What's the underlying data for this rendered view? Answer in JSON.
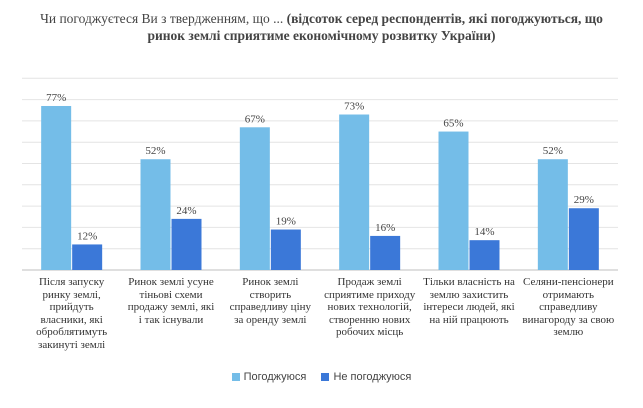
{
  "title": {
    "prefix": "Чи погоджуєтеся Ви з твердженням, що ...",
    "main": "(відсоток серед респондентів, які погоджуються, що ринок землі сприятиме економічному розвитку України)"
  },
  "colors": {
    "agree": "#74bde8",
    "disagree": "#3b78d8"
  },
  "chart_data": {
    "type": "bar",
    "title": "Чи погоджуєтеся Ви з твердженням, що ... (відсоток серед респондентів, які погоджуються, що ринок землі сприятиме економічному розвитку України)",
    "categories": [
      "Після запуску ринку землі, прийдуть власники, які оброблятимуть закинуті землі",
      "Ринок землі усуне тіньові схеми продажу землі, які і так існували",
      "Ринок землі створить справедливу ціну за оренду землі",
      "Продаж землі сприятиме приходу нових технологій, створенню нових робочих місць",
      "Тільки власність на землю захистить інтереси людей, які на ній працюють",
      "Селяни-пенсіонери отримають справедливу винагороду за свою землю"
    ],
    "series": [
      {
        "name": "Погоджуюся",
        "values": [
          77,
          52,
          67,
          73,
          65,
          52
        ],
        "labels": [
          "77%",
          "52%",
          "67%",
          "73%",
          "65%",
          "52%"
        ]
      },
      {
        "name": "Не погоджуюся",
        "values": [
          12,
          24,
          19,
          16,
          14,
          29
        ],
        "labels": [
          "12%",
          "24%",
          "19%",
          "16%",
          "14%",
          "29%"
        ]
      }
    ],
    "ylim": [
      0,
      90
    ],
    "grid": true,
    "legend_position": "bottom",
    "xlabel": "",
    "ylabel": ""
  }
}
